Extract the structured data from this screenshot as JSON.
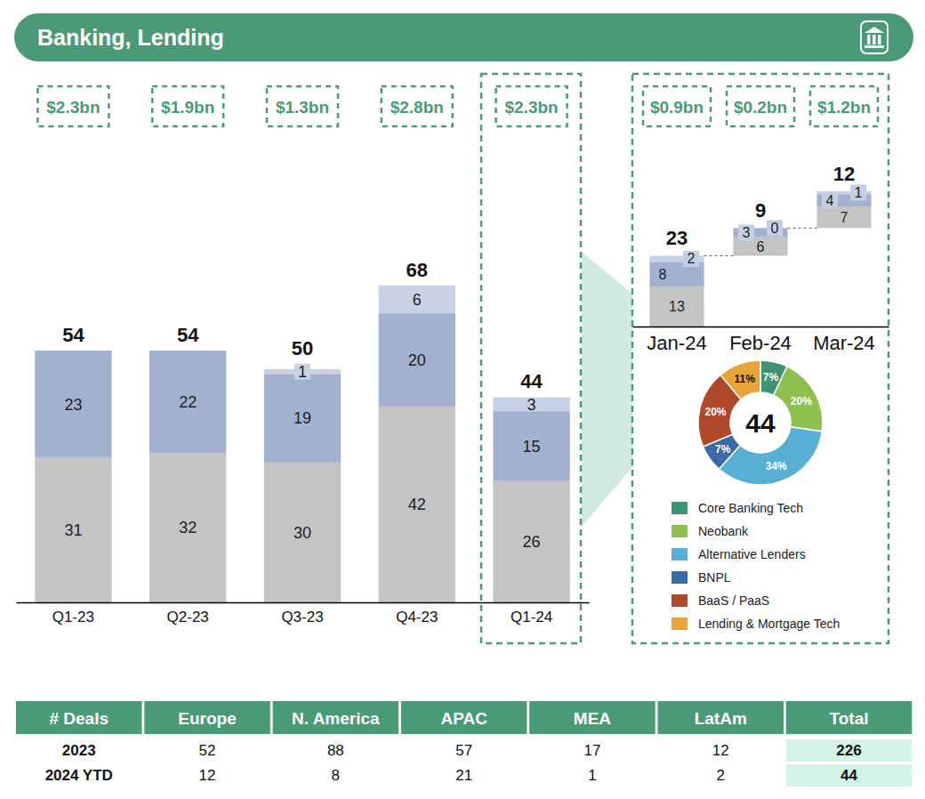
{
  "title": "Banking, Lending",
  "chart_data": [
    {
      "type": "bar",
      "stacked": true,
      "data_labels": true,
      "tick_labels": "x",
      "categories": [
        "Q1-23",
        "Q2-23",
        "Q3-23",
        "Q4-23",
        "Q1-24"
      ],
      "series": [
        {
          "color": "#c4c4c4",
          "values": [
            31,
            32,
            30,
            42,
            26
          ]
        },
        {
          "color": "#a3b1d1",
          "values": [
            23,
            22,
            19,
            20,
            15
          ]
        },
        {
          "color": "#c9d2e5",
          "values": [
            null,
            null,
            1,
            6,
            3
          ]
        }
      ],
      "totals": [
        54,
        54,
        50,
        68,
        44
      ],
      "amounts": [
        "$2.3bn",
        "$1.9bn",
        "$1.3bn",
        "$2.8bn",
        "$2.3bn"
      ],
      "ylim": [
        0,
        75
      ]
    },
    {
      "type": "waterfall",
      "stacked": true,
      "data_labels": true,
      "tick_labels": "x",
      "categories": [
        "Jan-24",
        "Feb-24",
        "Mar-24"
      ],
      "series": [
        {
          "color": "#c4c4c4",
          "values": [
            13,
            6,
            7
          ]
        },
        {
          "color": "#a3b1d1",
          "values": [
            8,
            3,
            4
          ]
        },
        {
          "color": "#c9d2e5",
          "values": [
            2,
            0,
            1
          ]
        }
      ],
      "totals": [
        23,
        9,
        12
      ],
      "amounts": [
        "$0.9bn",
        "$0.2bn",
        "$1.2bn"
      ],
      "ylim": [
        0,
        50
      ]
    },
    {
      "type": "pie",
      "data_labels": true,
      "legend": "bottom",
      "categories": [
        "Core Banking Tech",
        "Neobank",
        "Alternative Lenders",
        "BNPL",
        "BaaS / PaaS",
        "Lending & Mortgage Tech"
      ],
      "values": [
        7,
        20,
        34,
        7,
        20,
        11
      ],
      "value_labels": [
        "7%",
        "20%",
        "34%",
        "7%",
        "20%",
        "11%"
      ],
      "colors": [
        "#3f9274",
        "#8fc04f",
        "#57afd4",
        "#3a6aa8",
        "#ae4a2a",
        "#e9a33b"
      ],
      "total": 44
    }
  ],
  "table": {
    "header": [
      "# Deals",
      "Europe",
      "N. America",
      "APAC",
      "MEA",
      "LatAm",
      "Total"
    ],
    "rows": [
      [
        "2023",
        52,
        88,
        57,
        17,
        12,
        226
      ],
      [
        "2024 YTD",
        12,
        8,
        21,
        1,
        2,
        44
      ]
    ]
  }
}
